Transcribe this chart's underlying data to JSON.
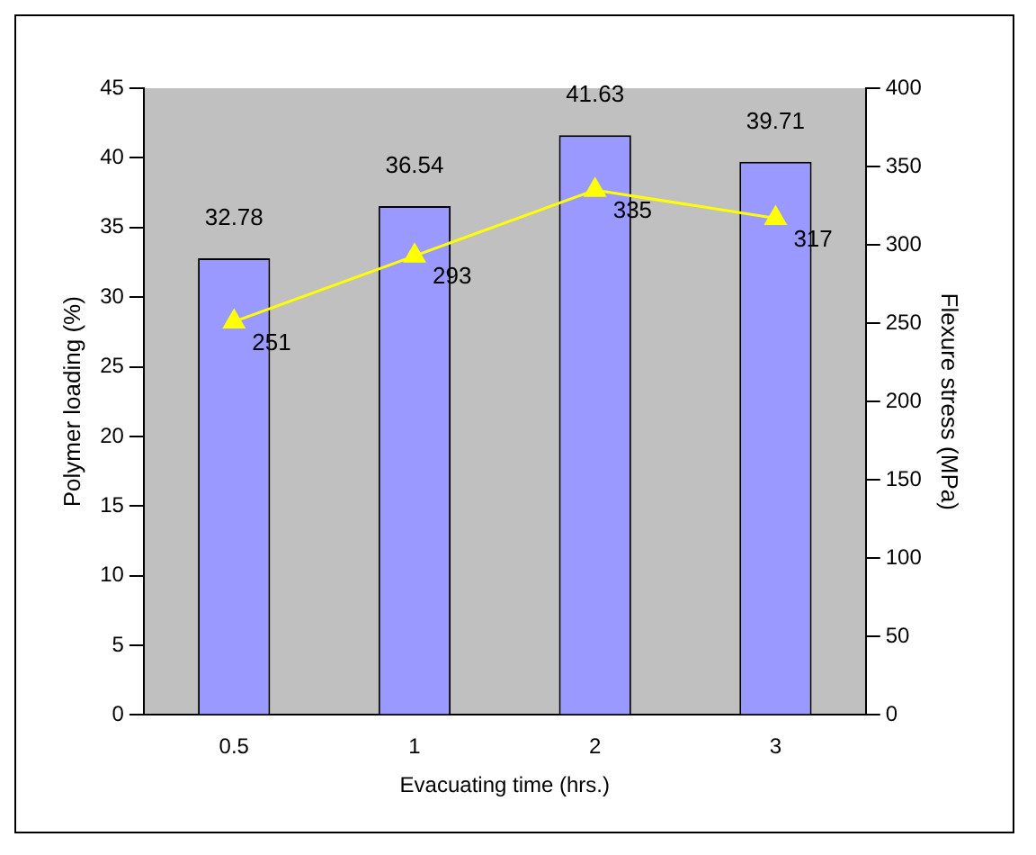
{
  "chart_data": {
    "type": "bar",
    "xlabel": "Evacuating time (hrs.)",
    "ylabel": "Polymer loading (%)",
    "y2label": "Flexure stress (MPa)",
    "categories": [
      "0.5",
      "1",
      "2",
      "3"
    ],
    "series": [
      {
        "color": "#9999ff",
        "values": [
          32.78,
          36.54,
          41.63,
          39.71
        ]
      },
      {
        "type": "line",
        "axis": "y2",
        "color": "#ffff00",
        "values": [
          251,
          293,
          335,
          317
        ]
      }
    ],
    "ylim": [
      0,
      45
    ],
    "yticks": [
      0,
      5,
      10,
      15,
      20,
      25,
      30,
      35,
      40,
      45
    ],
    "y2lim": [
      0,
      400
    ],
    "y2ticks": [
      0,
      50,
      100,
      150,
      200,
      250,
      300,
      350,
      400
    ],
    "data_labels": true,
    "marker": "triangle",
    "grid": false,
    "legend": false
  }
}
